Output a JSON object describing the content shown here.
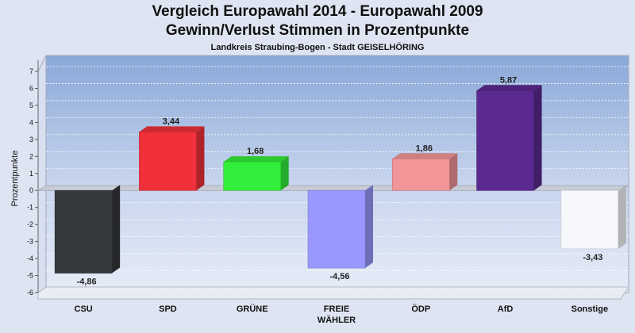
{
  "chart_data": {
    "type": "bar",
    "title": "Vergleich Europawahl 2014 - Europawahl 2009",
    "subtitle": "Gewinn/Verlust Stimmen in Prozentpunkte",
    "caption": "Landkreis Straubing-Bogen - Stadt GEISELHÖRING",
    "ylabel": "Prozentpunkte",
    "ylim": [
      -6,
      7
    ],
    "yticks": [
      -6,
      -5,
      -4,
      -3,
      -2,
      -1,
      0,
      1,
      2,
      3,
      4,
      5,
      6,
      7
    ],
    "grid": true,
    "categories": [
      {
        "label": "CSU",
        "label2": ""
      },
      {
        "label": "SPD",
        "label2": ""
      },
      {
        "label": "GRÜNE",
        "label2": ""
      },
      {
        "label": "FREIE",
        "label2": "WÄHLER"
      },
      {
        "label": "ÖDP",
        "label2": ""
      },
      {
        "label": "AfD",
        "label2": ""
      },
      {
        "label": "Sonstige",
        "label2": ""
      }
    ],
    "values": [
      -4.86,
      3.44,
      1.68,
      -4.56,
      1.86,
      5.87,
      -3.43
    ],
    "value_labels": [
      "-4,86",
      "3,44",
      "1,68",
      "-4,56",
      "1,86",
      "5,87",
      "-3,43"
    ],
    "colors": [
      "#35383d",
      "#f0303a",
      "#33ee3a",
      "#9898ff",
      "#f29598",
      "#5a2a90",
      "#f6f8fc"
    ]
  }
}
